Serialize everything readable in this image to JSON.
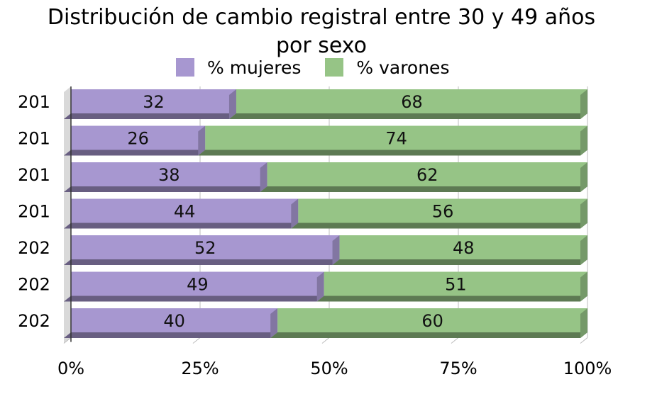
{
  "chart_data": {
    "type": "bar",
    "orientation": "horizontal",
    "stacked": "percent",
    "title_line1": "Distribución de cambio registral entre 30 y 49 años",
    "title_line2": "por sexo",
    "categories": [
      "201",
      "201",
      "201",
      "201",
      "202",
      "202",
      "202"
    ],
    "series": [
      {
        "name": "% mujeres",
        "values": [
          32,
          26,
          38,
          44,
          52,
          49,
          40
        ],
        "color": "#a797d0"
      },
      {
        "name": "% varones",
        "values": [
          68,
          74,
          62,
          56,
          48,
          51,
          60
        ],
        "color": "#96c486"
      }
    ],
    "x_ticks": [
      "0%",
      "25%",
      "50%",
      "75%",
      "100%"
    ],
    "xlim": [
      0,
      100
    ],
    "grid": true,
    "legend_position": "top"
  }
}
